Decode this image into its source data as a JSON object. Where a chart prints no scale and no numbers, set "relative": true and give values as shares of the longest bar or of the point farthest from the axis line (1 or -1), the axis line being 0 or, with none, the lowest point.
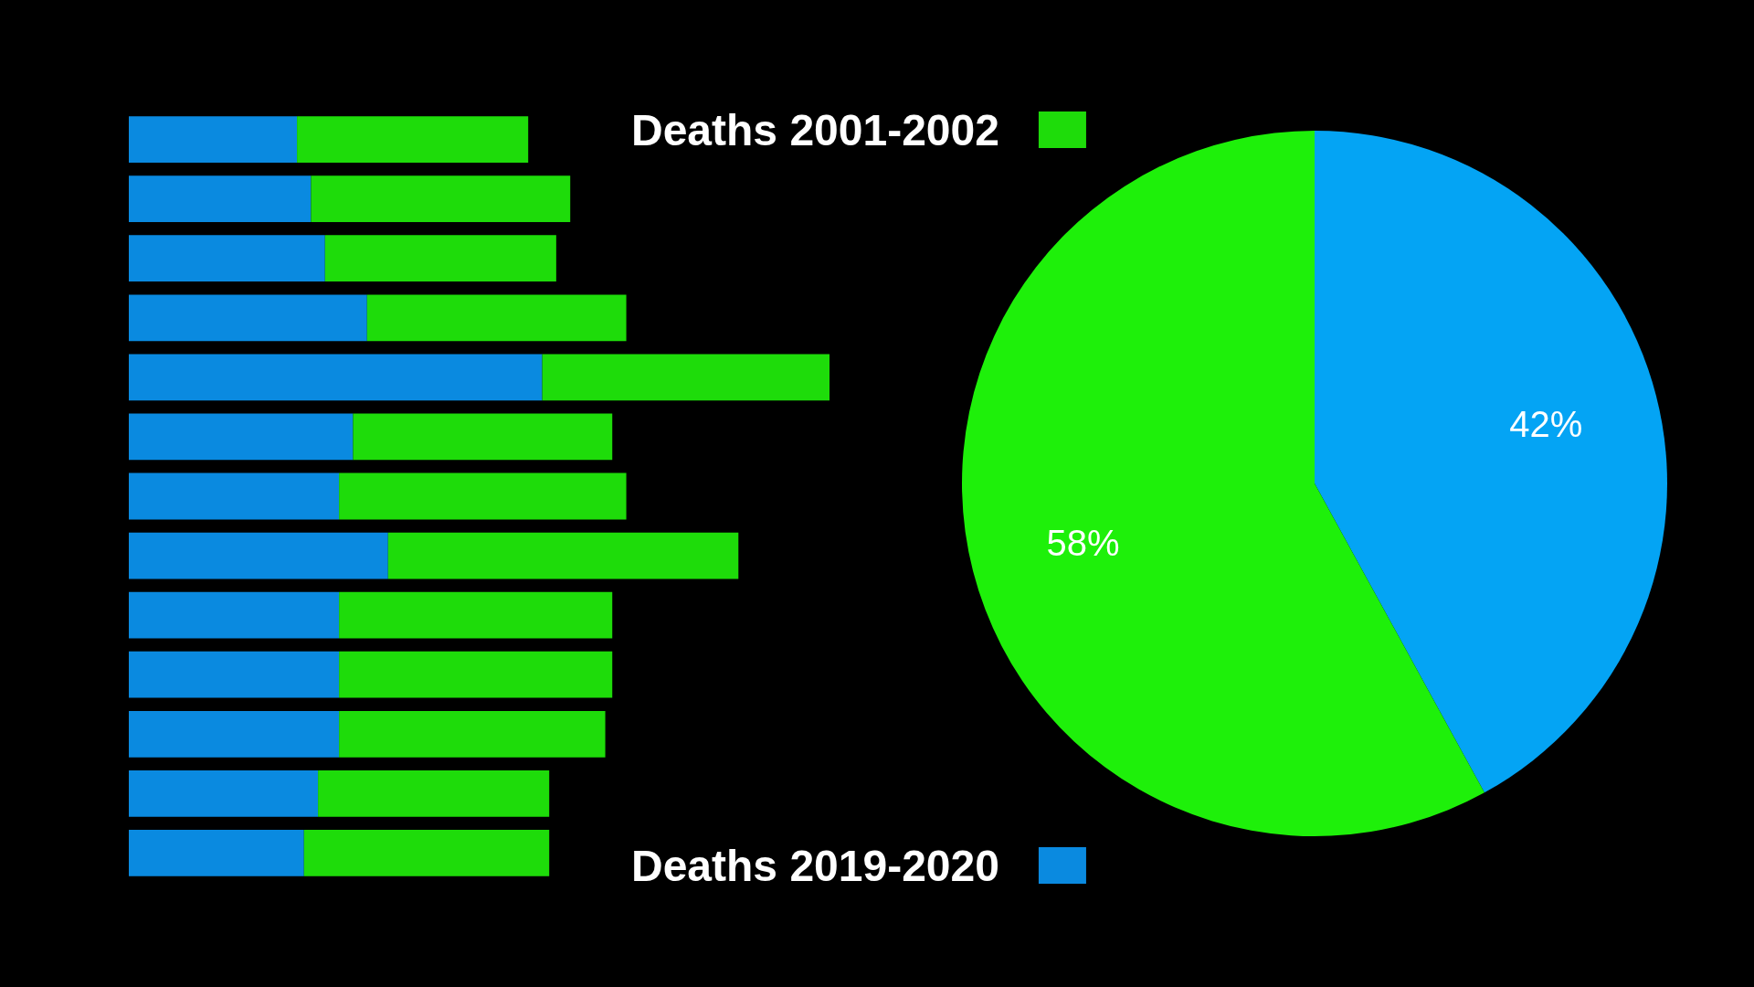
{
  "chart_data": [
    {
      "type": "bar",
      "orientation": "horizontal",
      "stacked": true,
      "relative": true,
      "legend": "right",
      "categories": [
        null,
        null,
        null,
        null,
        null,
        null,
        null,
        null,
        null,
        null,
        null,
        null,
        null
      ],
      "series": [
        {
          "name": "Deaths 2019-2020",
          "color": "#0a8ae0",
          "values": [
            0.24,
            0.26,
            0.28,
            0.34,
            0.59,
            0.32,
            0.3,
            0.37,
            0.3,
            0.3,
            0.3,
            0.27,
            0.25
          ]
        },
        {
          "name": "Deaths 2001-2002",
          "color": "#1edc0a",
          "values": [
            0.33,
            0.37,
            0.33,
            0.37,
            0.41,
            0.37,
            0.41,
            0.5,
            0.39,
            0.39,
            0.38,
            0.33,
            0.35
          ]
        }
      ]
    },
    {
      "type": "pie",
      "categories": [
        null,
        null
      ],
      "values": [
        42,
        58
      ],
      "colors": [
        "#04a4f4",
        "#1ef00a"
      ],
      "value_labels": [
        "42%",
        "58%"
      ]
    }
  ]
}
